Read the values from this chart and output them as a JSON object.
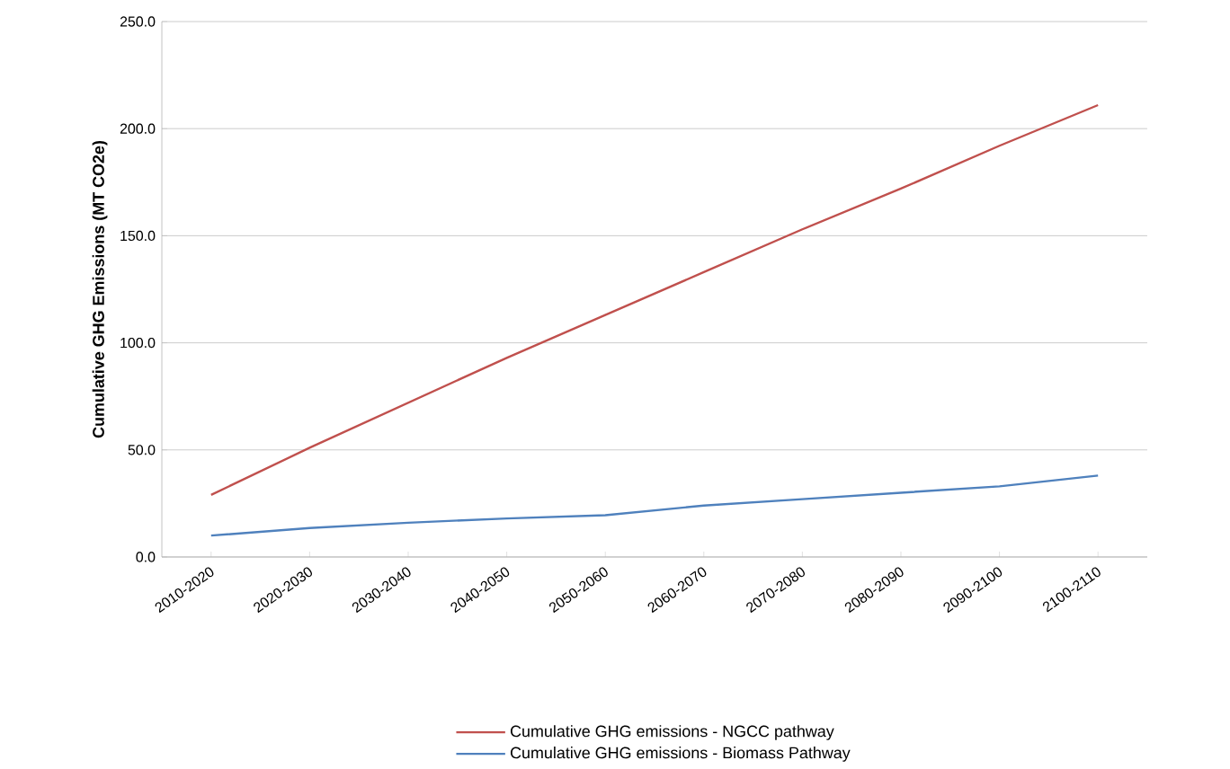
{
  "chart_data": {
    "type": "line",
    "ylabel": "Cumulative GHG Emissions (MT CO2e)",
    "categories": [
      "2010-2020",
      "2020-2030",
      "2030-2040",
      "2040-2050",
      "2050-2060",
      "2060-2070",
      "2070-2080",
      "2080-2090",
      "2090-2100",
      "2100-2110"
    ],
    "series": [
      {
        "name": "Cumulative GHG emissions - NGCC pathway",
        "color": "#c0504d",
        "values": [
          29,
          51,
          72,
          93,
          113,
          133,
          153,
          172,
          192,
          211
        ]
      },
      {
        "name": "Cumulative GHG emissions  - Biomass Pathway",
        "color": "#4f81bd",
        "values": [
          10,
          13.5,
          16,
          18,
          19.5,
          24,
          27,
          30,
          33,
          38
        ]
      }
    ],
    "ylim": [
      0,
      250
    ],
    "yticks": [
      {
        "value": 0,
        "label": "0.0"
      },
      {
        "value": 50,
        "label": "50.0"
      },
      {
        "value": 100,
        "label": "100.0"
      },
      {
        "value": 150,
        "label": "150.0"
      },
      {
        "value": 200,
        "label": "200.0"
      },
      {
        "value": 250,
        "label": "250.0"
      }
    ],
    "grid": "y",
    "legend": "bottom",
    "marker": "none",
    "line_style": "solid"
  }
}
